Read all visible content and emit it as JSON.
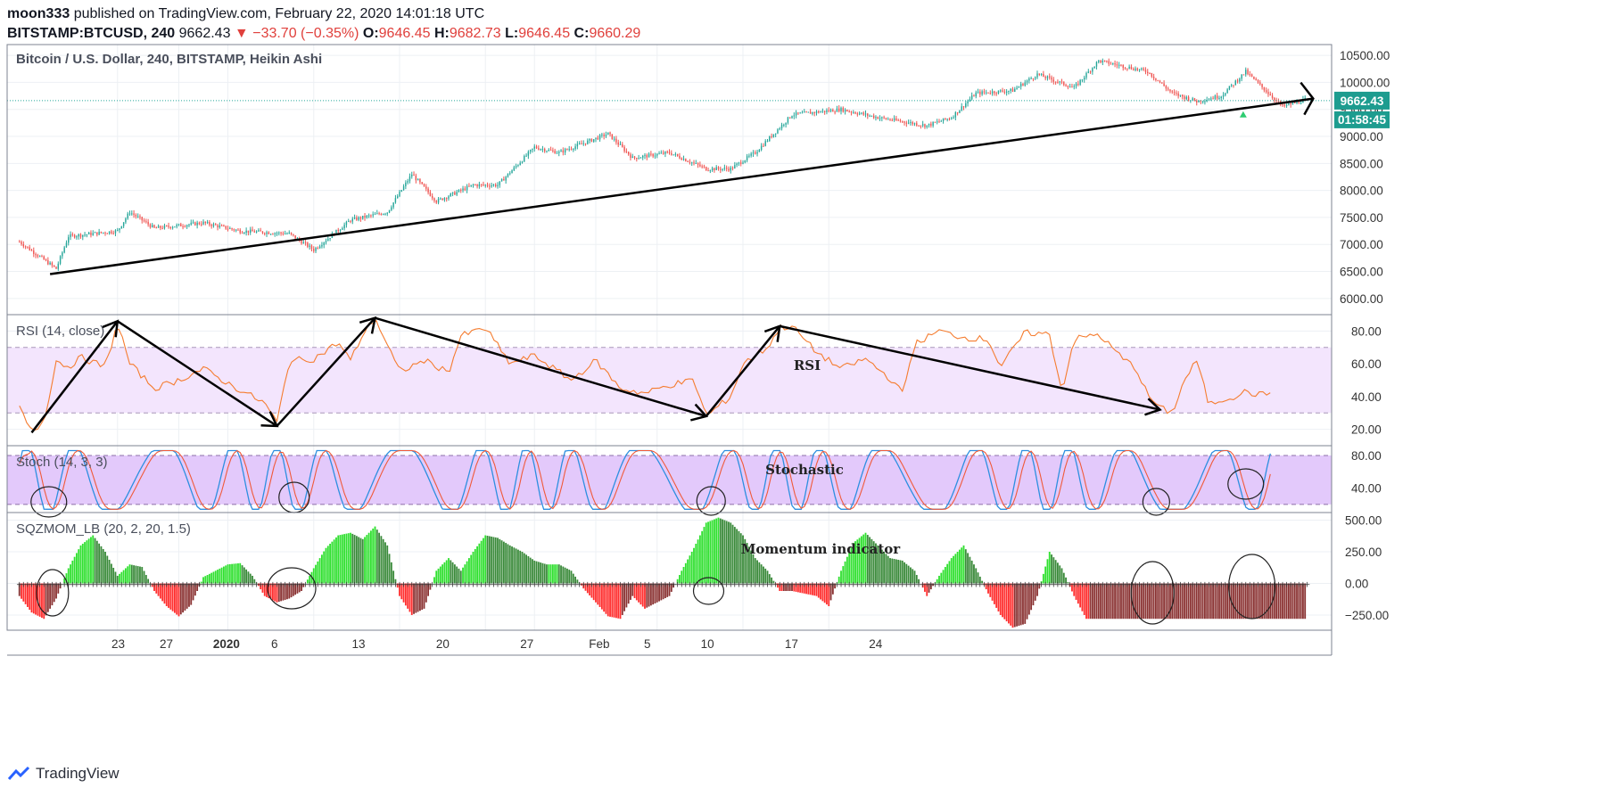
{
  "header": {
    "author": "moon333",
    "published": "published on TradingView.com, February 22, 2020 14:01:18 UTC",
    "symbol": "BITSTAMP:BTCUSD, 240",
    "price": "9662.43",
    "change": "−33.70 (−0.35%)",
    "o_label": "O:",
    "o_value": "9646.45",
    "h_label": "H:",
    "h_value": "9682.73",
    "l_label": "L:",
    "l_value": "9646.45",
    "c_label": "C:",
    "c_value": "9660.29"
  },
  "colors": {
    "up": "#26a69a",
    "down": "#ef5350",
    "rsi": "#f57c2f",
    "stoch_k": "#2d8fe0",
    "stoch_d": "#f05a3a",
    "mom_up_bright": "#30e030",
    "mom_up_dark": "#3a8a3a",
    "mom_dn_bright": "#ff2e2e",
    "mom_dn_dark": "#8a3232"
  },
  "chart_data": [
    {
      "type": "candlestick",
      "title": "Bitcoin / U.S. Dollar, 240, BITSTAMP, Heikin Ashi",
      "ylim": [
        5700,
        10700
      ],
      "yticks": [
        "10500.00",
        "10000.00",
        "9500.00",
        "9000.00",
        "8500.00",
        "8000.00",
        "7500.00",
        "7000.00",
        "6500.00",
        "6000.00"
      ],
      "last_price_label": "9662.43",
      "countdown_label": "01:58:45",
      "x_tick_labels": [
        "23",
        "27",
        "2020",
        "6",
        "13",
        "20",
        "27",
        "Feb",
        "5",
        "10",
        "17",
        "24"
      ],
      "key_points_day_price": [
        [
          -11,
          7050
        ],
        [
          -8,
          6550
        ],
        [
          -7,
          7150
        ],
        [
          -3,
          7250
        ],
        [
          -2,
          7600
        ],
        [
          0,
          7300
        ],
        [
          4,
          7400
        ],
        [
          7,
          7250
        ],
        [
          11,
          7200
        ],
        [
          13,
          6900
        ],
        [
          16,
          7450
        ],
        [
          19,
          7600
        ],
        [
          21,
          8300
        ],
        [
          23,
          7800
        ],
        [
          26,
          8100
        ],
        [
          28,
          8100
        ],
        [
          31,
          8800
        ],
        [
          33,
          8700
        ],
        [
          37,
          9050
        ],
        [
          39,
          8600
        ],
        [
          42,
          8700
        ],
        [
          45,
          8400
        ],
        [
          47,
          8400
        ],
        [
          49,
          8700
        ],
        [
          52,
          9400
        ],
        [
          56,
          9500
        ],
        [
          59,
          9350
        ],
        [
          63,
          9200
        ],
        [
          65,
          9350
        ],
        [
          67,
          9800
        ],
        [
          70,
          9850
        ],
        [
          72,
          10150
        ],
        [
          75,
          9900
        ],
        [
          77,
          10400
        ],
        [
          79,
          10300
        ],
        [
          81,
          10200
        ],
        [
          83,
          9800
        ],
        [
          85,
          9650
        ],
        [
          87,
          9750
        ],
        [
          89,
          10200
        ],
        [
          92,
          9550
        ],
        [
          94,
          9690
        ]
      ]
    },
    {
      "type": "line",
      "title": "RSI (14, close)",
      "annotation": "RSI",
      "ylim": [
        10,
        90
      ],
      "band": [
        30,
        70
      ],
      "yticks": [
        "80.00",
        "60.00",
        "40.00",
        "20.00"
      ],
      "key_points": [
        [
          -11,
          33
        ],
        [
          -10,
          18
        ],
        [
          -9,
          25
        ],
        [
          -8,
          62
        ],
        [
          -7,
          58
        ],
        [
          -6,
          64
        ],
        [
          -4,
          58
        ],
        [
          -3,
          85
        ],
        [
          -2,
          60
        ],
        [
          0,
          45
        ],
        [
          2,
          50
        ],
        [
          4,
          57
        ],
        [
          6,
          48
        ],
        [
          8,
          40
        ],
        [
          9,
          36
        ],
        [
          10,
          24
        ],
        [
          11,
          62
        ],
        [
          13,
          63
        ],
        [
          15,
          73
        ],
        [
          16,
          62
        ],
        [
          17,
          78
        ],
        [
          18,
          88
        ],
        [
          20,
          55
        ],
        [
          22,
          62
        ],
        [
          24,
          55
        ],
        [
          25,
          77
        ],
        [
          27,
          82
        ],
        [
          29,
          60
        ],
        [
          31,
          65
        ],
        [
          34,
          50
        ],
        [
          36,
          62
        ],
        [
          38,
          45
        ],
        [
          40,
          42
        ],
        [
          42,
          47
        ],
        [
          44,
          50
        ],
        [
          45,
          28
        ],
        [
          47,
          40
        ],
        [
          48,
          60
        ],
        [
          50,
          70
        ],
        [
          51,
          82
        ],
        [
          52,
          83
        ],
        [
          54,
          67
        ],
        [
          56,
          57
        ],
        [
          58,
          63
        ],
        [
          60,
          51
        ],
        [
          61,
          42
        ],
        [
          62,
          72
        ],
        [
          64,
          80
        ],
        [
          66,
          76
        ],
        [
          68,
          75
        ],
        [
          69,
          58
        ],
        [
          71,
          79
        ],
        [
          73,
          78
        ],
        [
          74,
          43
        ],
        [
          75,
          75
        ],
        [
          77,
          78
        ],
        [
          79,
          63
        ],
        [
          80,
          58
        ],
        [
          81,
          41
        ],
        [
          82,
          33
        ],
        [
          83,
          30
        ],
        [
          84,
          50
        ],
        [
          85,
          62
        ],
        [
          86,
          35
        ],
        [
          87,
          38
        ],
        [
          88,
          40
        ],
        [
          89,
          43
        ],
        [
          90,
          41
        ],
        [
          91,
          42
        ]
      ]
    },
    {
      "type": "line",
      "title": "Stoch (14, 3, 3)",
      "annotation": "Stochastic",
      "ylim": [
        10,
        92
      ],
      "band": [
        20,
        80
      ],
      "yticks": [
        "80.00",
        "40.00"
      ]
    },
    {
      "type": "bar",
      "title": "SQZMOM_LB (20, 2, 20, 1.5)",
      "annotation": "Momentum indicator",
      "ylim": [
        -370,
        560
      ],
      "yticks": [
        "500.00",
        "250.00",
        "0.00",
        "−250.00"
      ],
      "key_points": [
        [
          -11,
          -100
        ],
        [
          -10,
          -230
        ],
        [
          -9,
          -280
        ],
        [
          -8,
          -120
        ],
        [
          -7,
          120
        ],
        [
          -6,
          300
        ],
        [
          -5,
          380
        ],
        [
          -4,
          250
        ],
        [
          -3,
          60
        ],
        [
          -2,
          150
        ],
        [
          -1,
          130
        ],
        [
          0,
          -60
        ],
        [
          1,
          -180
        ],
        [
          2,
          -260
        ],
        [
          3,
          -170
        ],
        [
          4,
          50
        ],
        [
          5,
          100
        ],
        [
          6,
          150
        ],
        [
          7,
          160
        ],
        [
          8,
          60
        ],
        [
          9,
          -100
        ],
        [
          10,
          -150
        ],
        [
          11,
          -120
        ],
        [
          12,
          -60
        ],
        [
          13,
          120
        ],
        [
          14,
          280
        ],
        [
          15,
          380
        ],
        [
          16,
          400
        ],
        [
          17,
          350
        ],
        [
          18,
          450
        ],
        [
          19,
          300
        ],
        [
          20,
          -100
        ],
        [
          21,
          -250
        ],
        [
          22,
          -200
        ],
        [
          23,
          100
        ],
        [
          24,
          200
        ],
        [
          25,
          100
        ],
        [
          26,
          250
        ],
        [
          27,
          380
        ],
        [
          28,
          360
        ],
        [
          29,
          300
        ],
        [
          30,
          250
        ],
        [
          31,
          180
        ],
        [
          32,
          150
        ],
        [
          33,
          150
        ],
        [
          34,
          100
        ],
        [
          35,
          -40
        ],
        [
          36,
          -150
        ],
        [
          37,
          -260
        ],
        [
          38,
          -280
        ],
        [
          39,
          -100
        ],
        [
          40,
          -200
        ],
        [
          41,
          -150
        ],
        [
          42,
          -100
        ],
        [
          43,
          100
        ],
        [
          44,
          280
        ],
        [
          45,
          480
        ],
        [
          46,
          520
        ],
        [
          47,
          480
        ],
        [
          48,
          380
        ],
        [
          49,
          200
        ],
        [
          50,
          100
        ],
        [
          51,
          -60
        ],
        [
          52,
          -60
        ],
        [
          53,
          -80
        ],
        [
          54,
          -100
        ],
        [
          55,
          -180
        ],
        [
          56,
          100
        ],
        [
          57,
          320
        ],
        [
          58,
          400
        ],
        [
          59,
          300
        ],
        [
          60,
          200
        ],
        [
          61,
          180
        ],
        [
          62,
          100
        ],
        [
          63,
          -100
        ],
        [
          64,
          60
        ],
        [
          65,
          200
        ],
        [
          66,
          300
        ],
        [
          67,
          120
        ],
        [
          68,
          -80
        ],
        [
          69,
          -250
        ],
        [
          70,
          -350
        ],
        [
          71,
          -320
        ],
        [
          72,
          -100
        ],
        [
          73,
          250
        ],
        [
          74,
          120
        ],
        [
          75,
          -100
        ],
        [
          76,
          -280
        ],
        [
          77,
          -280
        ]
      ]
    }
  ]
}
